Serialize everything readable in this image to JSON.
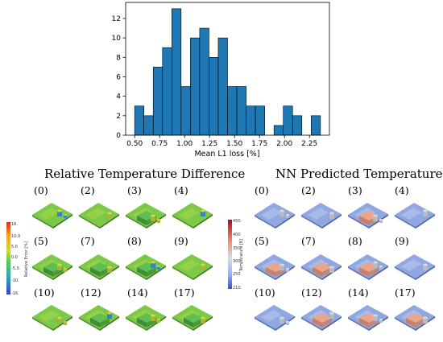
{
  "chart_data": [
    {
      "type": "bar",
      "title": "",
      "xlabel": "Mean L1 loss [%]",
      "ylabel": "",
      "bin_edges": [
        0.5,
        0.593,
        0.686,
        0.779,
        0.872,
        0.965,
        1.058,
        1.151,
        1.244,
        1.337,
        1.43,
        1.523,
        1.616,
        1.709,
        1.802,
        1.895,
        1.988,
        2.081,
        2.174,
        2.267,
        2.36
      ],
      "values": [
        3,
        2,
        7,
        9,
        13,
        5,
        10,
        11,
        8,
        10,
        5,
        5,
        3,
        3,
        0,
        1,
        3,
        2,
        0,
        2
      ],
      "xlim": [
        0.41,
        2.45
      ],
      "ylim": [
        0,
        13.65
      ],
      "xticks": [
        "0.50",
        "0.75",
        "1.00",
        "1.25",
        "1.50",
        "1.75",
        "2.00",
        "2.25"
      ],
      "xtick_values": [
        0.5,
        0.75,
        1.0,
        1.25,
        1.5,
        1.75,
        2.0,
        2.25
      ],
      "yticks": [
        "0",
        "2",
        "4",
        "6",
        "8",
        "10",
        "12"
      ],
      "ytick_values": [
        0,
        2,
        4,
        6,
        8,
        10,
        12
      ],
      "bar_color": "#1f77b4",
      "edge_color": "#000000"
    }
  ],
  "panels": {
    "left_title": "Relative Temperature Difference",
    "right_title": "NN Predicted Temperature",
    "labels": [
      "(0)",
      "(2)",
      "(3)",
      "(4)",
      "(5)",
      "(7)",
      "(8)",
      "(9)",
      "(10)",
      "(12)",
      "(14)",
      "(17)"
    ]
  },
  "left_colorbar": {
    "label": "Relative Error [%]",
    "ticks": [
      "16.",
      "10.0",
      "5.0",
      "0.0",
      "-5.0",
      "-10.",
      "-16."
    ]
  },
  "right_colorbar": {
    "label": "Temperature [K]",
    "ticks": [
      "450.",
      "400",
      "350",
      "300",
      "250",
      "210."
    ]
  }
}
